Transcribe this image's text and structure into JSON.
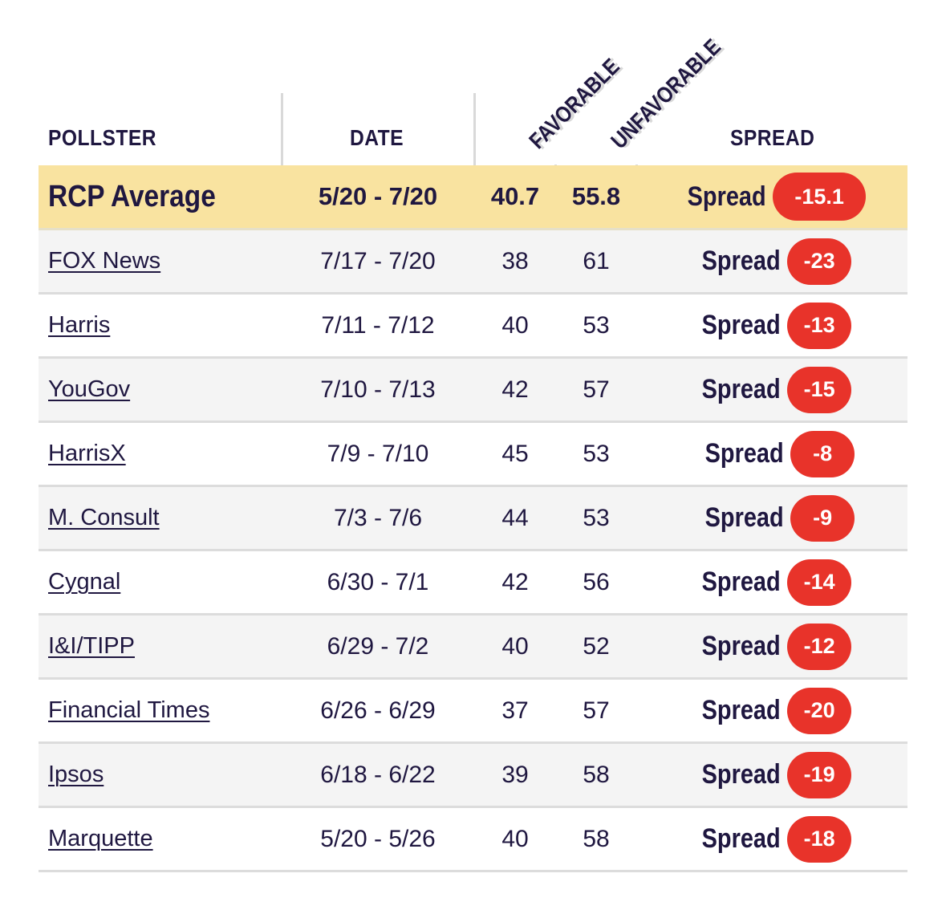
{
  "headers": {
    "pollster": "POLLSTER",
    "date": "DATE",
    "favorable": "FAVORABLE",
    "unfavorable": "UNFAVORABLE",
    "spread": "SPREAD"
  },
  "spread_label": "Spread",
  "colors": {
    "average_row_bg": "#f9e3a0",
    "badge_bg": "#e8332a",
    "text": "#1f1740",
    "alt_row_bg": "#f4f4f4"
  },
  "average": {
    "pollster": "RCP Average",
    "date": "5/20 - 7/20",
    "favorable": "40.7",
    "unfavorable": "55.8",
    "spread": "-15.1"
  },
  "rows": [
    {
      "pollster": "FOX News",
      "date": "7/17 - 7/20",
      "favorable": "38",
      "unfavorable": "61",
      "spread": "-23"
    },
    {
      "pollster": "Harris",
      "date": "7/11 - 7/12",
      "favorable": "40",
      "unfavorable": "53",
      "spread": "-13"
    },
    {
      "pollster": "YouGov",
      "date": "7/10 - 7/13",
      "favorable": "42",
      "unfavorable": "57",
      "spread": "-15"
    },
    {
      "pollster": "HarrisX",
      "date": "7/9 - 7/10",
      "favorable": "45",
      "unfavorable": "53",
      "spread": "-8"
    },
    {
      "pollster": "M. Consult",
      "date": "7/3 - 7/6",
      "favorable": "44",
      "unfavorable": "53",
      "spread": "-9"
    },
    {
      "pollster": "Cygnal",
      "date": "6/30 - 7/1",
      "favorable": "42",
      "unfavorable": "56",
      "spread": "-14"
    },
    {
      "pollster": "I&I/TIPP",
      "date": "6/29 - 7/2",
      "favorable": "40",
      "unfavorable": "52",
      "spread": "-12"
    },
    {
      "pollster": "Financial Times",
      "date": "6/26 - 6/29",
      "favorable": "37",
      "unfavorable": "57",
      "spread": "-20"
    },
    {
      "pollster": "Ipsos",
      "date": "6/18 - 6/22",
      "favorable": "39",
      "unfavorable": "58",
      "spread": "-19"
    },
    {
      "pollster": "Marquette",
      "date": "5/20 - 5/26",
      "favorable": "40",
      "unfavorable": "58",
      "spread": "-18"
    }
  ],
  "chart_data": {
    "type": "table",
    "columns": [
      "POLLSTER",
      "DATE",
      "FAVORABLE",
      "UNFAVORABLE",
      "SPREAD"
    ],
    "rows": [
      [
        "RCP Average",
        "5/20 - 7/20",
        40.7,
        55.8,
        -15.1
      ],
      [
        "FOX News",
        "7/17 - 7/20",
        38,
        61,
        -23
      ],
      [
        "Harris",
        "7/11 - 7/12",
        40,
        53,
        -13
      ],
      [
        "YouGov",
        "7/10 - 7/13",
        42,
        57,
        -15
      ],
      [
        "HarrisX",
        "7/9 - 7/10",
        45,
        53,
        -8
      ],
      [
        "M. Consult",
        "7/3 - 7/6",
        44,
        53,
        -9
      ],
      [
        "Cygnal",
        "6/30 - 7/1",
        42,
        56,
        -14
      ],
      [
        "I&I/TIPP",
        "6/29 - 7/2",
        40,
        52,
        -12
      ],
      [
        "Financial Times",
        "6/26 - 6/29",
        37,
        57,
        -20
      ],
      [
        "Ipsos",
        "6/18 - 6/22",
        39,
        58,
        -19
      ],
      [
        "Marquette",
        "5/20 - 5/26",
        40,
        58,
        -18
      ]
    ]
  }
}
